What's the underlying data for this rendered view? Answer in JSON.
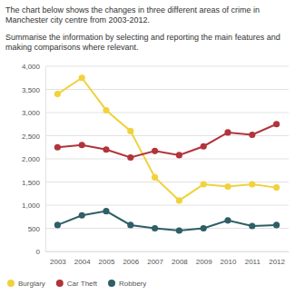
{
  "chart_data": {
    "type": "line",
    "title": "The chart below shows the changes in three different areas of crime in Manchester city centre from 2003-2012.",
    "subtitle": "Summarise the information by selecting and reporting the main features and making comparisons where relevant.",
    "categories": [
      "2003",
      "2004",
      "2005",
      "2006",
      "2007",
      "2008",
      "2009",
      "2010",
      "2011",
      "2012"
    ],
    "series": [
      {
        "name": "Burglary",
        "color": "#f0d23c",
        "values": [
          3400,
          3750,
          3050,
          2600,
          1600,
          1100,
          1450,
          1400,
          1450,
          1380
        ]
      },
      {
        "name": "Car Theft",
        "color": "#b1343b",
        "values": [
          2250,
          2300,
          2200,
          2030,
          2170,
          2080,
          2270,
          2570,
          2520,
          2750
        ]
      },
      {
        "name": "Robbery",
        "color": "#2f5e66",
        "values": [
          570,
          780,
          870,
          570,
          500,
          450,
          500,
          670,
          550,
          570
        ]
      }
    ],
    "ylim": [
      0,
      4000
    ],
    "yticks": [
      0,
      500,
      {
        "value": 1000,
        "label": "1,000"
      },
      {
        "value": 1500,
        "label": "1,500"
      },
      {
        "value": 2000,
        "label": "2,000"
      },
      {
        "value": 2500,
        "label": "2,500"
      },
      {
        "value": 3000,
        "label": "3,000"
      },
      {
        "value": 3500,
        "label": "3,500"
      },
      {
        "value": 4000,
        "label": "4,000"
      }
    ],
    "grid": true,
    "legend": "bottom",
    "marker": "circle",
    "line_style": "solid"
  }
}
